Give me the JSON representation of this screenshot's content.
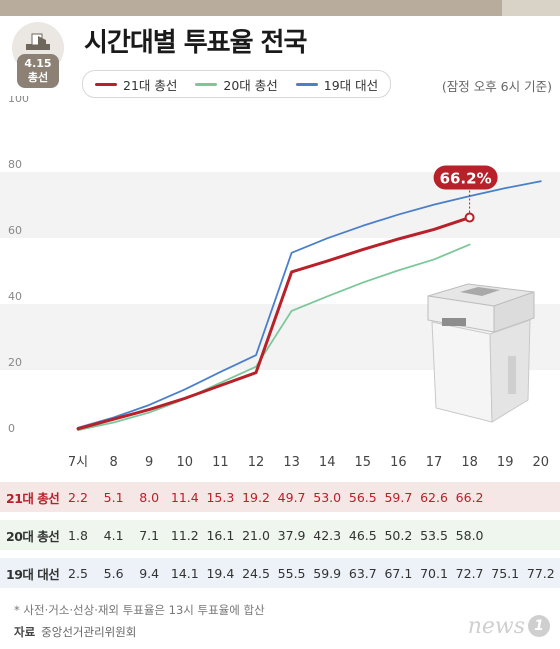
{
  "header": {
    "title": "시간대별 투표율 전국",
    "badge_top": "4.15",
    "badge_bottom": "총선",
    "basis_note": "(잠정 오후 6시 기준)"
  },
  "legend": [
    {
      "label": "21대 총선",
      "color": "#b8202a"
    },
    {
      "label": "20대 총선",
      "color": "#7cc79a"
    },
    {
      "label": "19대 대선",
      "color": "#4a7fcb"
    }
  ],
  "chart_data": {
    "type": "line",
    "x": [
      "7시",
      "8",
      "9",
      "10",
      "11",
      "12",
      "13",
      "14",
      "15",
      "16",
      "17",
      "18",
      "19",
      "20"
    ],
    "ylim": [
      0,
      100
    ],
    "yticks": [
      "0",
      "20",
      "40",
      "60",
      "80",
      "100"
    ],
    "callout": "66.2%",
    "series": [
      {
        "name": "21대 총선",
        "color": "#b8202a",
        "values": [
          2.2,
          5.1,
          8.0,
          11.4,
          15.3,
          19.2,
          49.7,
          53.0,
          56.5,
          59.7,
          62.6,
          66.2,
          null,
          null
        ]
      },
      {
        "name": "20대 총선",
        "color": "#7cc79a",
        "values": [
          1.8,
          4.1,
          7.1,
          11.2,
          16.1,
          21.0,
          37.9,
          42.3,
          46.5,
          50.2,
          53.5,
          58.0,
          null,
          null
        ]
      },
      {
        "name": "19대 대선",
        "color": "#4a7fcb",
        "values": [
          2.5,
          5.6,
          9.4,
          14.1,
          19.4,
          24.5,
          55.5,
          59.9,
          63.7,
          67.1,
          70.1,
          72.7,
          75.1,
          77.2
        ]
      }
    ]
  },
  "table": {
    "rows": [
      {
        "label": "21대 총선",
        "color": "#b8202a",
        "bg": "#f6e7e7",
        "values": [
          "2.2",
          "5.1",
          "8.0",
          "11.4",
          "15.3",
          "19.2",
          "49.7",
          "53.0",
          "56.5",
          "59.7",
          "62.6",
          "66.2",
          "",
          ""
        ]
      },
      {
        "label": "20대 총선",
        "color": "#333333",
        "bg": "#eef6ee",
        "values": [
          "1.8",
          "4.1",
          "7.1",
          "11.2",
          "16.1",
          "21.0",
          "37.9",
          "42.3",
          "46.5",
          "50.2",
          "53.5",
          "58.0",
          "",
          ""
        ]
      },
      {
        "label": "19대 대선",
        "color": "#333333",
        "bg": "#edf2f9",
        "values": [
          "2.5",
          "5.6",
          "9.4",
          "14.1",
          "19.4",
          "24.5",
          "55.5",
          "59.9",
          "63.7",
          "67.1",
          "70.1",
          "72.7",
          "75.1",
          "77.2"
        ]
      }
    ]
  },
  "footer": {
    "footnote": "* 사전·거소·선상·재외 투표율은 13시 투표율에 합산",
    "source_label": "자료",
    "source_text": "중앙선거관리위원회",
    "logo_text": "news",
    "logo_number": "1"
  }
}
